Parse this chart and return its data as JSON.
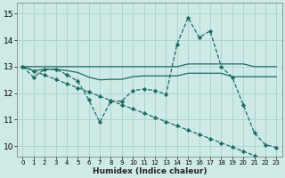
{
  "xlabel": "Humidex (Indice chaleur)",
  "bg_color": "#ceeae6",
  "grid_color": "#aed4d0",
  "line_color": "#1e6b65",
  "xlim": [
    -0.5,
    23.5
  ],
  "ylim": [
    9.6,
    15.4
  ],
  "yticks": [
    10,
    11,
    12,
    13,
    14,
    15
  ],
  "xticks": [
    0,
    1,
    2,
    3,
    4,
    5,
    6,
    7,
    8,
    9,
    10,
    11,
    12,
    13,
    14,
    15,
    16,
    17,
    18,
    19,
    20,
    21,
    22,
    23
  ],
  "series": [
    {
      "x": [
        0,
        1,
        2,
        3,
        4,
        5,
        6,
        7,
        8,
        9,
        10,
        11,
        12,
        13,
        14,
        15,
        16,
        17,
        18,
        19,
        20,
        21,
        22,
        23
      ],
      "y": [
        13.0,
        12.6,
        12.9,
        12.9,
        12.7,
        12.45,
        11.75,
        10.9,
        11.7,
        11.7,
        12.1,
        12.15,
        12.1,
        11.95,
        13.85,
        14.85,
        14.1,
        14.35,
        13.0,
        12.6,
        11.55,
        10.5,
        10.05,
        9.95
      ],
      "linestyle": "--",
      "marker": "D",
      "markersize": 2.2
    },
    {
      "x": [
        0,
        1,
        2,
        3,
        4,
        5,
        6,
        7,
        8,
        9,
        10,
        11,
        12,
        13,
        14,
        15,
        16,
        17,
        18,
        19,
        20,
        21,
        22,
        23
      ],
      "y": [
        13.0,
        13.0,
        13.0,
        13.0,
        13.0,
        13.0,
        13.0,
        13.0,
        13.0,
        13.0,
        13.0,
        13.0,
        13.0,
        13.0,
        13.0,
        13.1,
        13.1,
        13.1,
        13.1,
        13.1,
        13.1,
        13.0,
        13.0,
        13.0
      ],
      "linestyle": "-",
      "marker": null,
      "markersize": 0
    },
    {
      "x": [
        0,
        1,
        2,
        3,
        4,
        5,
        6,
        7,
        8,
        9,
        10,
        11,
        12,
        13,
        14,
        15,
        16,
        17,
        18,
        19,
        20,
        21,
        22,
        23
      ],
      "y": [
        13.0,
        12.85,
        12.9,
        12.9,
        12.85,
        12.78,
        12.6,
        12.5,
        12.52,
        12.52,
        12.62,
        12.65,
        12.65,
        12.65,
        12.65,
        12.75,
        12.75,
        12.75,
        12.75,
        12.62,
        12.62,
        12.62,
        12.62,
        12.62
      ],
      "linestyle": "-",
      "marker": null,
      "markersize": 0
    },
    {
      "x": [
        0,
        1,
        2,
        3,
        4,
        5,
        6,
        7,
        8,
        9,
        10,
        11,
        12,
        13,
        14,
        15,
        16,
        17,
        18,
        19,
        20,
        21,
        22,
        23
      ],
      "y": [
        13.0,
        12.84,
        12.68,
        12.52,
        12.36,
        12.2,
        12.04,
        11.88,
        11.72,
        11.56,
        11.4,
        11.24,
        11.08,
        10.92,
        10.76,
        10.6,
        10.44,
        10.28,
        10.12,
        9.96,
        9.8,
        9.64,
        9.48,
        9.32
      ],
      "linestyle": "--",
      "marker": "D",
      "markersize": 2.2
    }
  ]
}
